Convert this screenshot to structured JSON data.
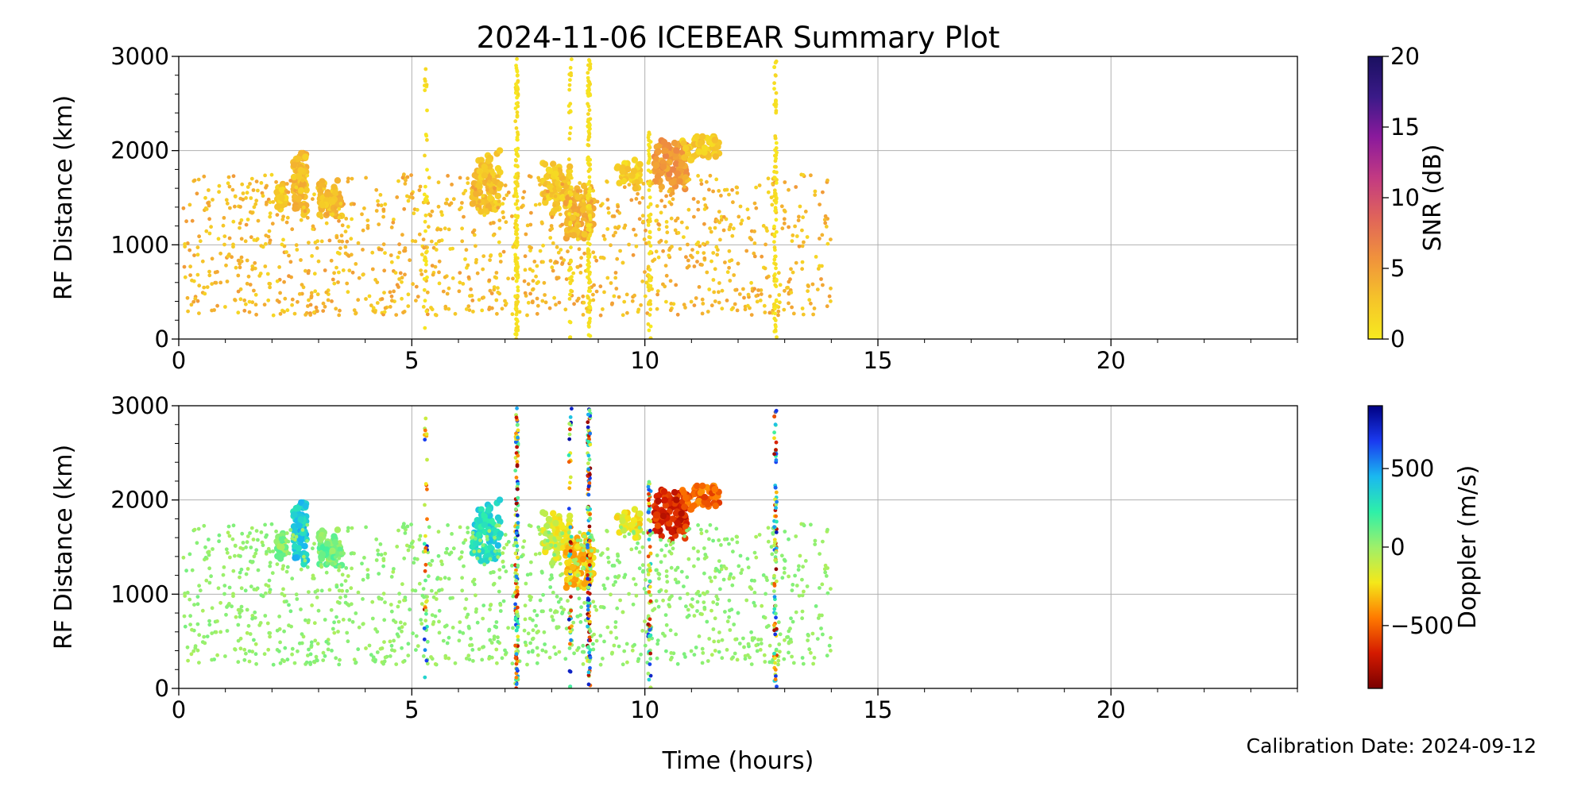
{
  "chart_data": {
    "title": "2024-11-06 ICEBEAR Summary Plot",
    "footnote": "Calibration Date: 2024-09-12",
    "xlabel": "Time (hours)",
    "panels": [
      {
        "type": "scatter",
        "ylabel": "RF Distance (km)",
        "xlim": [
          0,
          24
        ],
        "ylim": [
          0,
          3000
        ],
        "xticks": [
          0,
          5,
          10,
          15,
          20
        ],
        "yticks": [
          0,
          1000,
          2000,
          3000
        ],
        "grid": true,
        "color_variable": "snr",
        "colorbar": {
          "label": "SNR (dB)",
          "range": [
            0,
            20
          ],
          "ticks": [
            0,
            5,
            10,
            15,
            20
          ],
          "colors": [
            "#f7ea1f",
            "#f5c32a",
            "#f0923c",
            "#e0645a",
            "#c23a82",
            "#8b1a9c",
            "#3a1a88",
            "#1a1060"
          ]
        }
      },
      {
        "type": "scatter",
        "ylabel": "RF Distance (km)",
        "xlim": [
          0,
          24
        ],
        "ylim": [
          0,
          3000
        ],
        "xticks": [
          0,
          5,
          10,
          15,
          20
        ],
        "yticks": [
          0,
          1000,
          2000,
          3000
        ],
        "grid": true,
        "color_variable": "doppler",
        "colorbar": {
          "label": "Doppler (m/s)",
          "range": [
            -900,
            900
          ],
          "ticks": [
            -500,
            0,
            500
          ],
          "tick_labels": [
            "−500",
            "0",
            "500"
          ],
          "colors": [
            "#7a0000",
            "#d41a00",
            "#ff7a00",
            "#f4e81a",
            "#9ef06a",
            "#2ef0a8",
            "#1ab8f0",
            "#1a3af0",
            "#000082"
          ]
        }
      }
    ],
    "clusters": [
      {
        "x": [
          2.1,
          2.3
        ],
        "y": [
          1350,
          1650
        ],
        "snr": 2,
        "doppler": 40,
        "n": 45
      },
      {
        "x": [
          2.45,
          2.75
        ],
        "y": [
          1250,
          2080
        ],
        "snr": 3,
        "doppler": 380,
        "n": 85
      },
      {
        "x": [
          3.0,
          3.5
        ],
        "y": [
          1250,
          1700
        ],
        "snr": 2.5,
        "doppler": 80,
        "n": 65
      },
      {
        "x": [
          6.3,
          6.9
        ],
        "y": [
          1250,
          2050
        ],
        "snr": 2.5,
        "doppler": 320,
        "n": 90
      },
      {
        "x": [
          7.8,
          8.4
        ],
        "y": [
          1300,
          1900
        ],
        "snr": 2,
        "doppler": -150,
        "n": 70
      },
      {
        "x": [
          8.3,
          8.9
        ],
        "y": [
          1000,
          1650
        ],
        "snr": 3.5,
        "doppler": -300,
        "n": 95
      },
      {
        "x": [
          9.4,
          9.9
        ],
        "y": [
          1600,
          1900
        ],
        "snr": 1.5,
        "doppler": -200,
        "n": 35
      },
      {
        "x": [
          10.2,
          10.9
        ],
        "y": [
          1550,
          2150
        ],
        "snr": 5,
        "doppler": -650,
        "n": 115
      },
      {
        "x": [
          10.8,
          11.6
        ],
        "y": [
          1900,
          2150
        ],
        "snr": 2,
        "doppler": -500,
        "n": 65
      }
    ],
    "scatter_region": {
      "x": [
        0.1,
        14.0
      ],
      "y": [
        250,
        1750
      ],
      "snr": 2.5,
      "doppler": 20,
      "n": 1250
    },
    "vertical_streaks": [
      {
        "x": 5.3,
        "y": [
          0,
          2900
        ],
        "n": 35
      },
      {
        "x": 7.25,
        "y": [
          0,
          3000
        ],
        "n": 150
      },
      {
        "x": 8.4,
        "y": [
          0,
          3000
        ],
        "n": 50
      },
      {
        "x": 8.8,
        "y": [
          0,
          3000
        ],
        "n": 140
      },
      {
        "x": 10.1,
        "y": [
          0,
          2200
        ],
        "n": 60
      },
      {
        "x": 12.8,
        "y": [
          0,
          3000
        ],
        "n": 90
      }
    ]
  }
}
